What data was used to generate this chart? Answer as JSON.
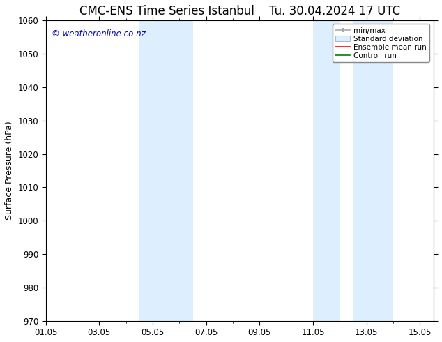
{
  "title_left": "CMC-ENS Time Series Istanbul",
  "title_right": "Tu. 30.04.2024 17 UTC",
  "ylabel": "Surface Pressure (hPa)",
  "ylim": [
    970,
    1060
  ],
  "yticks": [
    970,
    980,
    990,
    1000,
    1010,
    1020,
    1030,
    1040,
    1050,
    1060
  ],
  "xlim": [
    0,
    14.5
  ],
  "xtick_labels": [
    "01.05",
    "03.05",
    "05.05",
    "07.05",
    "09.05",
    "11.05",
    "13.05",
    "15.05"
  ],
  "xtick_positions": [
    0,
    2,
    4,
    6,
    8,
    10,
    12,
    14
  ],
  "shaded_bands": [
    {
      "x_start": 3.5,
      "x_end": 5.5,
      "color": "#ddeeff"
    },
    {
      "x_start": 10.0,
      "x_end": 11.0,
      "color": "#ddeeff"
    },
    {
      "x_start": 11.5,
      "x_end": 13.0,
      "color": "#ddeeff"
    }
  ],
  "watermark_text": "© weatheronline.co.nz",
  "watermark_color": "#0000bb",
  "background_color": "#ffffff",
  "title_fontsize": 12,
  "axis_label_fontsize": 9,
  "tick_fontsize": 8.5
}
